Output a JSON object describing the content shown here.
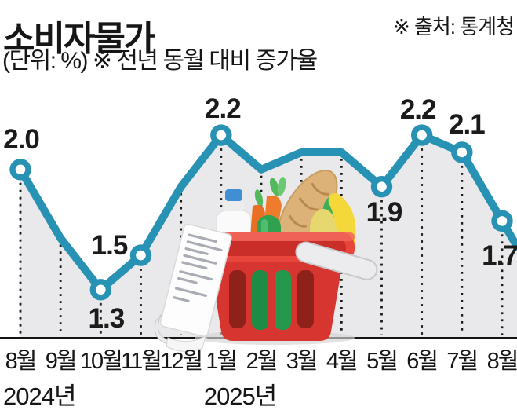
{
  "header": {
    "title": "소비자물가",
    "subtitle": "(단위: %) ※ 전년 동월 대비 증가율",
    "source": "※ 출처: 통계청"
  },
  "chart_data": {
    "type": "line",
    "title": "소비자물가",
    "unit": "%",
    "note": "전년 동월 대비 증가율",
    "categories": [
      "8월",
      "9월",
      "10월",
      "11월",
      "12월",
      "1월",
      "2월",
      "3월",
      "4월",
      "5월",
      "6월",
      "7월",
      "8월"
    ],
    "values": [
      2.0,
      1.6,
      1.3,
      1.5,
      1.9,
      2.2,
      2.0,
      2.1,
      2.1,
      1.9,
      2.2,
      2.1,
      1.7
    ],
    "labeled_points": [
      {
        "index": 0,
        "label": "2.0",
        "placement": "above"
      },
      {
        "index": 2,
        "label": "1.3",
        "placement": "below"
      },
      {
        "index": 3,
        "label": "1.5",
        "placement": "above-left"
      },
      {
        "index": 5,
        "label": "2.2",
        "placement": "above"
      },
      {
        "index": 9,
        "label": "1.9",
        "placement": "below"
      },
      {
        "index": 10,
        "label": "2.2",
        "placement": "above"
      },
      {
        "index": 11,
        "label": "2.1",
        "placement": "above-right"
      },
      {
        "index": 12,
        "label": "1.7",
        "placement": "below"
      }
    ],
    "year_labels": [
      {
        "text": "2024년",
        "at_index": 0
      },
      {
        "text": "2025년",
        "at_index": 5
      }
    ],
    "xlabel": "",
    "ylabel": "",
    "ylim": [
      1.0,
      2.45
    ],
    "grid": "dotted vertical drop lines at every month",
    "legend": "none",
    "colors": {
      "line": "#2892b5",
      "area": "#e9e9eb",
      "axis": "#141414",
      "label": "#1b1b1b"
    }
  },
  "illustration": {
    "name": "grocery-basket",
    "items": [
      "receipt",
      "milk-bottle",
      "carrot",
      "baguette",
      "cucumber",
      "pear",
      "banana",
      "red-shopping-basket"
    ]
  }
}
